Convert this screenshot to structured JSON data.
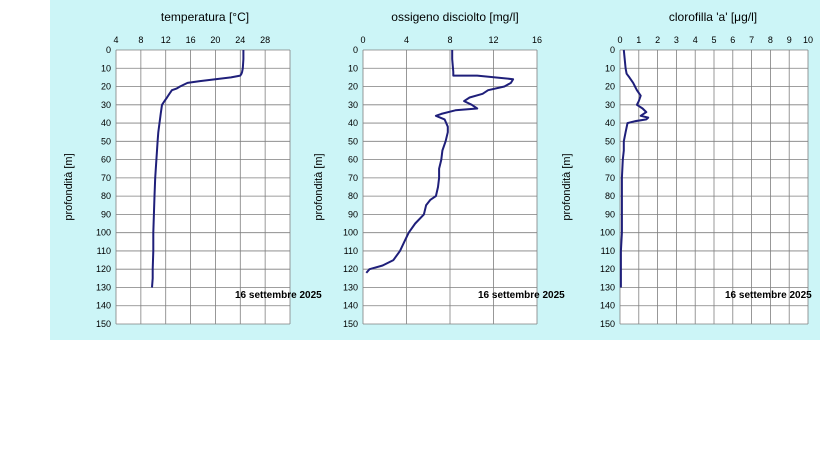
{
  "colors": {
    "panel_bg": "#ccf5f7",
    "plot_bg": "#ffffff",
    "grid": "#7f7f7f",
    "line": "#1f1f7a"
  },
  "chart_data": [
    {
      "type": "line",
      "title": "temperatura [°C]",
      "xlabel": "",
      "ylabel": "profondità [m]",
      "x_ticks": [
        4,
        8,
        12,
        16,
        20,
        24,
        28
      ],
      "xlim": [
        4,
        32
      ],
      "y_ticks": [
        0,
        10,
        20,
        30,
        40,
        50,
        60,
        70,
        80,
        90,
        100,
        110,
        120,
        130,
        140,
        150
      ],
      "ylim": [
        0,
        150
      ],
      "y_inverted": true,
      "grid": true,
      "annotation": "16 settembre 2025",
      "series": [
        {
          "x": [
            24.5,
            24.5,
            24.4,
            24.3,
            24.2,
            24.0,
            22.5,
            20.0,
            17.5,
            15.5,
            14.3,
            13.8,
            13.0,
            12.6,
            12.2,
            11.8,
            11.4,
            11.2,
            11.0,
            10.8,
            10.7,
            10.6,
            10.5,
            10.4,
            10.3,
            10.2,
            10.1,
            10.0,
            10.0,
            9.9,
            9.9,
            9.8
          ],
          "y": [
            0,
            5,
            10,
            12,
            13,
            14,
            15,
            16,
            17,
            18,
            20,
            21,
            22,
            24,
            26,
            28,
            30,
            35,
            40,
            45,
            50,
            55,
            60,
            65,
            70,
            80,
            90,
            100,
            110,
            120,
            125,
            130
          ]
        }
      ]
    },
    {
      "type": "line",
      "title": "ossigeno disciolto [mg/l]",
      "xlabel": "",
      "ylabel": "profondità [m]",
      "x_ticks": [
        0,
        4,
        8,
        12,
        16
      ],
      "xlim": [
        0,
        16
      ],
      "y_ticks": [
        0,
        10,
        20,
        30,
        40,
        50,
        60,
        70,
        80,
        90,
        100,
        110,
        120,
        130,
        140,
        150
      ],
      "ylim": [
        0,
        150
      ],
      "y_inverted": true,
      "grid": true,
      "annotation": "16 settembre 2025",
      "series": [
        {
          "x": [
            8.2,
            8.2,
            8.3,
            8.3,
            10.5,
            13.8,
            13.6,
            13.0,
            11.5,
            11.0,
            9.8,
            9.3,
            10.0,
            10.5,
            8.5,
            7.2,
            6.7,
            7.5,
            7.8,
            7.8,
            7.6,
            7.3,
            7.2,
            7.0,
            7.0,
            6.9,
            6.7,
            6.2,
            5.8,
            5.6,
            4.8,
            4.2,
            3.8,
            3.4,
            2.8,
            1.8,
            0.6,
            0.3
          ],
          "y": [
            0,
            5,
            12,
            14,
            14,
            16,
            18,
            20,
            22,
            24,
            26,
            28,
            30,
            32,
            33,
            35,
            36,
            38,
            42,
            45,
            50,
            55,
            60,
            65,
            70,
            75,
            80,
            82,
            85,
            90,
            95,
            100,
            105,
            110,
            115,
            118,
            120,
            122
          ]
        }
      ]
    },
    {
      "type": "line",
      "title": "clorofilla 'a' [μg/l]",
      "xlabel": "",
      "ylabel": "profondità [m]",
      "x_ticks": [
        0,
        1,
        2,
        3,
        4,
        5,
        6,
        7,
        8,
        9,
        10
      ],
      "xlim": [
        0,
        10
      ],
      "y_ticks": [
        0,
        10,
        20,
        30,
        40,
        50,
        60,
        70,
        80,
        90,
        100,
        110,
        120,
        130,
        140,
        150
      ],
      "ylim": [
        0,
        150
      ],
      "y_inverted": true,
      "grid": true,
      "annotation": "16 settembre  2025",
      "series": [
        {
          "x": [
            0.2,
            0.25,
            0.3,
            0.35,
            0.5,
            0.7,
            0.8,
            0.9,
            1.1,
            1.0,
            0.9,
            1.2,
            1.4,
            1.1,
            1.5,
            1.4,
            0.8,
            0.4,
            0.3,
            0.2,
            0.2,
            0.15,
            0.1,
            0.1,
            0.1,
            0.1,
            0.05,
            0.05,
            0.05,
            0.05
          ],
          "y": [
            0,
            5,
            10,
            13,
            15,
            18,
            20,
            22,
            25,
            28,
            30,
            32,
            34,
            36,
            37,
            38,
            39,
            40,
            45,
            50,
            55,
            60,
            70,
            80,
            90,
            100,
            110,
            120,
            125,
            130
          ]
        }
      ]
    }
  ]
}
